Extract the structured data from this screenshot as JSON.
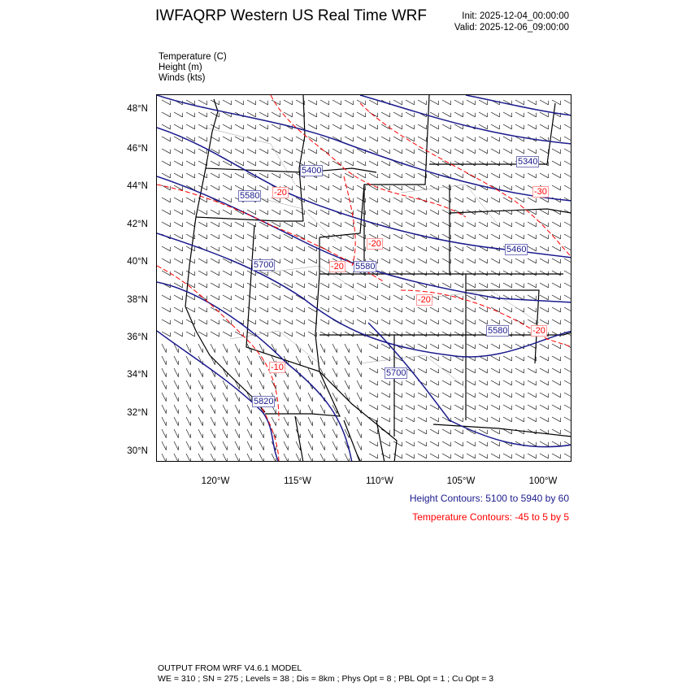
{
  "header": {
    "title": "IWFAQRP Western US Real Time WRF",
    "init": "Init: 2025-12-04_00:00:00",
    "valid": "Valid: 2025-12-06_09:00:00"
  },
  "fields": [
    "Temperature   (C)",
    "Height   (m)",
    "Winds   (kts)"
  ],
  "map": {
    "lat_labels": [
      "48°N",
      "46°N",
      "44°N",
      "42°N",
      "40°N",
      "38°N",
      "36°N",
      "34°N",
      "32°N",
      "30°N"
    ],
    "lon_labels": [
      "120°W",
      "115°W",
      "110°W",
      "105°W",
      "100°W"
    ],
    "contour_labels": [
      {
        "text": "5400",
        "kind": "height"
      },
      {
        "text": "5580",
        "kind": "height"
      },
      {
        "text": "-20",
        "kind": "temperature"
      },
      {
        "text": "5700",
        "kind": "height"
      },
      {
        "text": "-20",
        "kind": "temperature"
      },
      {
        "text": "5580",
        "kind": "height"
      },
      {
        "text": "-20",
        "kind": "temperature"
      },
      {
        "text": "5340",
        "kind": "height"
      },
      {
        "text": "-30",
        "kind": "temperature"
      },
      {
        "text": "5460",
        "kind": "height"
      },
      {
        "text": "-20",
        "kind": "temperature"
      },
      {
        "text": "5580",
        "kind": "height"
      },
      {
        "text": "-20",
        "kind": "temperature"
      },
      {
        "text": "-10",
        "kind": "temperature"
      },
      {
        "text": "5820",
        "kind": "height"
      },
      {
        "text": "5700",
        "kind": "height"
      }
    ],
    "colors": {
      "height": "#1a1a8c",
      "temperature": "#ff0000",
      "borders": "#000000",
      "barbs": "#000000"
    }
  },
  "legend": {
    "height_contours": "Height Contours: 5100 to 5940 by 60",
    "temperature_contours": "Temperature Contours: -45 to 5 by 5"
  },
  "footer": {
    "line1": "OUTPUT FROM WRF V4.6.1 MODEL",
    "line2": "WE = 310 ; SN = 275 ; Levels = 38 ; Dis = 8km ; Phys Opt = 8 ; PBL Opt = 1 ; Cu Opt = 3"
  }
}
